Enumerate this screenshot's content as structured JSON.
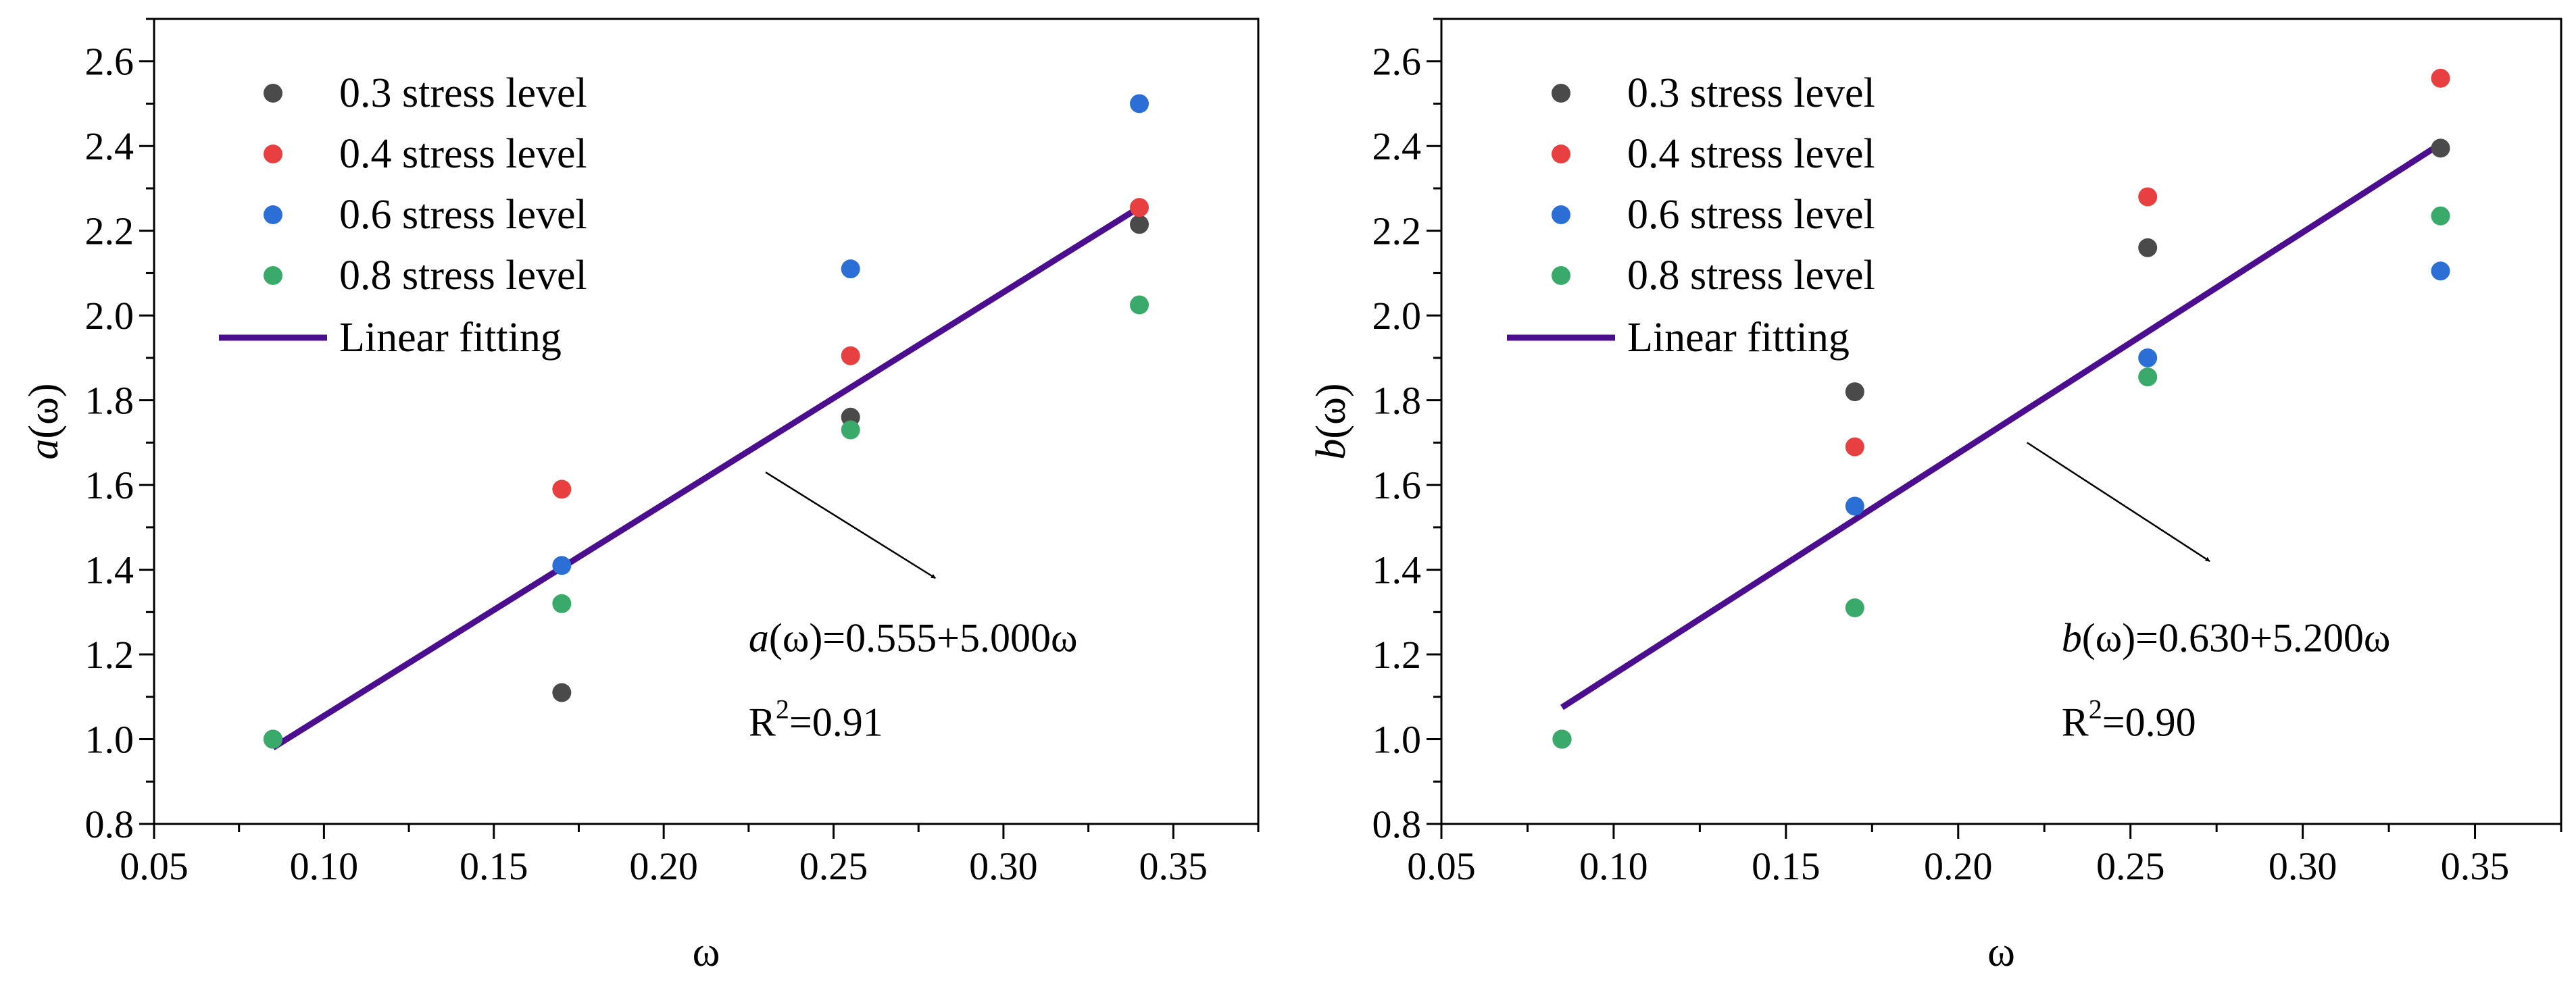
{
  "chart_data": [
    {
      "type": "scatter",
      "id": "left",
      "xlabel": "ω",
      "ylabel_var": "a",
      "ylabel_arg": "(ω)",
      "xlim": [
        0.05,
        0.375
      ],
      "ylim": [
        0.8,
        2.7
      ],
      "xticks": [
        0.05,
        0.1,
        0.15,
        0.2,
        0.25,
        0.3,
        0.35
      ],
      "xtick_labels": [
        "0.05",
        "0.10",
        "0.15",
        "0.20",
        "0.25",
        "0.30",
        "0.35"
      ],
      "yticks": [
        0.8,
        1.0,
        1.2,
        1.4,
        1.6,
        1.8,
        2.0,
        2.2,
        2.4,
        2.6
      ],
      "ytick_labels": [
        "0.8",
        "1.0",
        "1.2",
        "1.4",
        "1.6",
        "1.8",
        "2.0",
        "2.2",
        "2.4",
        "2.6"
      ],
      "series": [
        {
          "name": "0.3 stress level",
          "color": "#4a4a4a",
          "x": [
            0.085,
            0.17,
            0.255,
            0.34
          ],
          "y": [
            1.0,
            1.11,
            1.76,
            2.215
          ]
        },
        {
          "name": "0.4 stress level",
          "color": "#e84040",
          "x": [
            0.085,
            0.17,
            0.255,
            0.34
          ],
          "y": [
            1.0,
            1.59,
            1.905,
            2.255
          ]
        },
        {
          "name": "0.6 stress level",
          "color": "#2b6fd6",
          "x": [
            0.085,
            0.17,
            0.255,
            0.34
          ],
          "y": [
            1.0,
            1.41,
            2.11,
            2.5
          ]
        },
        {
          "name": "0.8 stress level",
          "color": "#3aaa6a",
          "x": [
            0.085,
            0.17,
            0.255,
            0.34
          ],
          "y": [
            1.0,
            1.32,
            1.73,
            2.025
          ]
        }
      ],
      "fit": {
        "name": "Linear fitting",
        "color": "#4b0e8f",
        "x": [
          0.085,
          0.34
        ],
        "y": [
          0.98,
          2.255
        ]
      },
      "equation": {
        "var": "a",
        "arg": "(ω)",
        "rhs": "=0.555+5.000ω"
      },
      "r2": {
        "base": "R",
        "sup": "2",
        "value": "=0.91"
      },
      "arrow": {
        "from": [
          0.23,
          1.63
        ],
        "to": [
          0.28,
          1.38
        ]
      }
    },
    {
      "type": "scatter",
      "id": "right",
      "xlabel": "ω",
      "ylabel_var": "b",
      "ylabel_arg": "(ω)",
      "xlim": [
        0.05,
        0.375
      ],
      "ylim": [
        0.8,
        2.7
      ],
      "xticks": [
        0.05,
        0.1,
        0.15,
        0.2,
        0.25,
        0.3,
        0.35
      ],
      "xtick_labels": [
        "0.05",
        "0.10",
        "0.15",
        "0.20",
        "0.25",
        "0.30",
        "0.35"
      ],
      "yticks": [
        0.8,
        1.0,
        1.2,
        1.4,
        1.6,
        1.8,
        2.0,
        2.2,
        2.4,
        2.6
      ],
      "ytick_labels": [
        "0.8",
        "1.0",
        "1.2",
        "1.4",
        "1.6",
        "1.8",
        "2.0",
        "2.2",
        "2.4",
        "2.6"
      ],
      "series": [
        {
          "name": "0.3 stress level",
          "color": "#4a4a4a",
          "x": [
            0.085,
            0.17,
            0.255,
            0.34
          ],
          "y": [
            1.0,
            1.82,
            2.16,
            2.395
          ]
        },
        {
          "name": "0.4 stress level",
          "color": "#e84040",
          "x": [
            0.085,
            0.17,
            0.255,
            0.34
          ],
          "y": [
            1.0,
            1.69,
            2.28,
            2.56
          ]
        },
        {
          "name": "0.6 stress level",
          "color": "#2b6fd6",
          "x": [
            0.085,
            0.17,
            0.255,
            0.34
          ],
          "y": [
            1.0,
            1.55,
            1.9,
            2.105
          ]
        },
        {
          "name": "0.8 stress level",
          "color": "#3aaa6a",
          "x": [
            0.085,
            0.17,
            0.255,
            0.34
          ],
          "y": [
            1.0,
            1.31,
            1.855,
            2.235
          ]
        }
      ],
      "fit": {
        "name": "Linear fitting",
        "color": "#4b0e8f",
        "x": [
          0.085,
          0.34
        ],
        "y": [
          1.075,
          2.405
        ]
      },
      "equation": {
        "var": "b",
        "arg": "(ω)",
        "rhs": "=0.630+5.200ω"
      },
      "r2": {
        "base": "R",
        "sup": "2",
        "value": "=0.90"
      },
      "arrow": {
        "from": [
          0.22,
          1.7
        ],
        "to": [
          0.273,
          1.42
        ]
      }
    }
  ]
}
